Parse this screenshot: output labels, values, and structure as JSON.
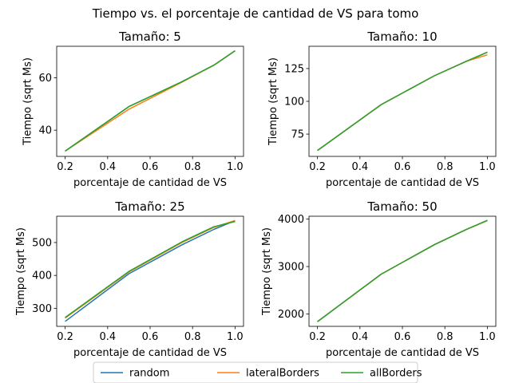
{
  "figure": {
    "suptitle": "Tiempo vs. el porcentaje de cantidad de VS para tomo"
  },
  "legend": {
    "placement": "bottom-center",
    "entries": [
      {
        "name": "random",
        "color": "#1f77b4"
      },
      {
        "name": "lateralBorders",
        "color": "#ff7f0e"
      },
      {
        "name": "allBorders",
        "color": "#2ca02c"
      }
    ]
  },
  "chart_data": [
    {
      "type": "line",
      "title": "Tamaño: 5",
      "xlabel": "porcentaje de cantidad de VS",
      "ylabel": "Tiempo (sqrt Ms)",
      "xlim": [
        0.16,
        1.04
      ],
      "ylim": [
        30,
        72
      ],
      "xticks": [
        0.2,
        0.4,
        0.6,
        0.8,
        1.0
      ],
      "xtick_labels": [
        "0.2",
        "0.4",
        "0.6",
        "0.8",
        "1.0"
      ],
      "yticks": [
        40,
        60
      ],
      "ytick_labels": [
        "40",
        "60"
      ],
      "grid": false,
      "x": [
        0.2,
        0.5,
        0.75,
        0.9,
        1.0
      ],
      "series": [
        {
          "name": "random",
          "color": "#1f77b4",
          "values": [
            32.0,
            49.0,
            58.5,
            64.8,
            70.3
          ]
        },
        {
          "name": "lateralBorders",
          "color": "#ff7f0e",
          "values": [
            32.0,
            48.0,
            58.3,
            64.8,
            70.3
          ]
        },
        {
          "name": "allBorders",
          "color": "#2ca02c",
          "values": [
            32.0,
            49.0,
            58.5,
            64.8,
            70.3
          ]
        }
      ]
    },
    {
      "type": "line",
      "title": "Tamaño: 10",
      "xlabel": "porcentaje de cantidad de VS",
      "ylabel": "Tiempo (sqrt Ms)",
      "xlim": [
        0.16,
        1.04
      ],
      "ylim": [
        58,
        142
      ],
      "xticks": [
        0.2,
        0.4,
        0.6,
        0.8,
        1.0
      ],
      "xtick_labels": [
        "0.2",
        "0.4",
        "0.6",
        "0.8",
        "1.0"
      ],
      "yticks": [
        75,
        100,
        125
      ],
      "ytick_labels": [
        "75",
        "100",
        "125"
      ],
      "grid": false,
      "x": [
        0.2,
        0.5,
        0.75,
        0.9,
        1.0
      ],
      "series": [
        {
          "name": "random",
          "color": "#1f77b4",
          "values": [
            62.5,
            97.5,
            119.5,
            130.5,
            137.5
          ]
        },
        {
          "name": "lateralBorders",
          "color": "#ff7f0e",
          "values": [
            62.5,
            97.5,
            119.5,
            130.5,
            135.5
          ]
        },
        {
          "name": "allBorders",
          "color": "#2ca02c",
          "values": [
            62.5,
            97.5,
            119.5,
            130.5,
            137.5
          ]
        }
      ]
    },
    {
      "type": "line",
      "title": "Tamaño: 25",
      "xlabel": "porcentaje de cantidad de VS",
      "ylabel": "Tiempo (sqrt Ms)",
      "xlim": [
        0.16,
        1.04
      ],
      "ylim": [
        245,
        580
      ],
      "xticks": [
        0.2,
        0.4,
        0.6,
        0.8,
        1.0
      ],
      "xtick_labels": [
        "0.2",
        "0.4",
        "0.6",
        "0.8",
        "1.0"
      ],
      "yticks": [
        300,
        400,
        500
      ],
      "ytick_labels": [
        "300",
        "400",
        "500"
      ],
      "grid": false,
      "x": [
        0.2,
        0.5,
        0.75,
        0.9,
        1.0
      ],
      "series": [
        {
          "name": "random",
          "color": "#1f77b4",
          "values": [
            260,
            405,
            493,
            540,
            567
          ]
        },
        {
          "name": "lateralBorders",
          "color": "#ff7f0e",
          "values": [
            270,
            410,
            500,
            546,
            567
          ]
        },
        {
          "name": "allBorders",
          "color": "#2ca02c",
          "values": [
            272,
            412,
            502,
            548,
            564
          ]
        }
      ]
    },
    {
      "type": "line",
      "title": "Tamaño: 50",
      "xlabel": "porcentaje de cantidad de VS",
      "ylabel": "Tiempo (sqrt Ms)",
      "xlim": [
        0.16,
        1.04
      ],
      "ylim": [
        1740,
        4060
      ],
      "xticks": [
        0.2,
        0.4,
        0.6,
        0.8,
        1.0
      ],
      "xtick_labels": [
        "0.2",
        "0.4",
        "0.6",
        "0.8",
        "1.0"
      ],
      "yticks": [
        2000,
        3000,
        4000
      ],
      "ytick_labels": [
        "2000",
        "3000",
        "4000"
      ],
      "grid": false,
      "x": [
        0.2,
        0.5,
        0.75,
        0.9,
        1.0
      ],
      "series": [
        {
          "name": "random",
          "color": "#1f77b4",
          "values": [
            1840,
            2840,
            3460,
            3780,
            3970
          ]
        },
        {
          "name": "lateralBorders",
          "color": "#ff7f0e",
          "values": [
            1840,
            2840,
            3460,
            3780,
            3970
          ]
        },
        {
          "name": "allBorders",
          "color": "#2ca02c",
          "values": [
            1840,
            2840,
            3460,
            3780,
            3975
          ]
        }
      ]
    }
  ]
}
